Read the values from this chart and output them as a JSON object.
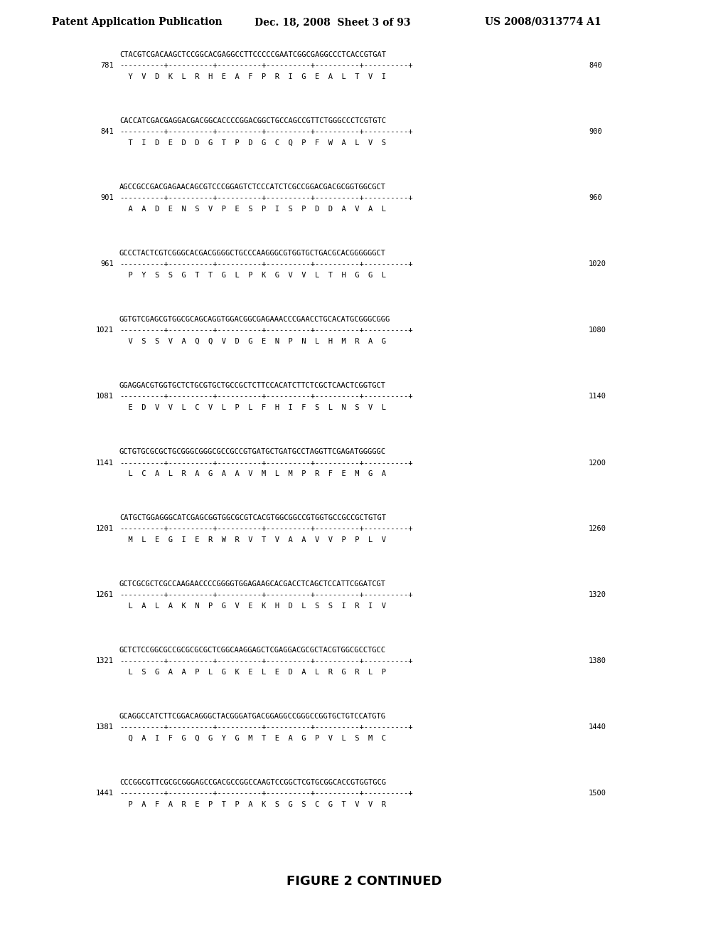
{
  "header_left": "Patent Application Publication",
  "header_mid": "Dec. 18, 2008  Sheet 3 of 93",
  "header_right": "US 2008/0313774 A1",
  "footer": "FIGURE 2 CONTINUED",
  "background_color": "#ffffff",
  "sequences": [
    {
      "num_left": "781",
      "num_right": "840",
      "dna": "CTACGTCGACAAGCTCCGGCACGAGGCCTTCCCCCGAATCGGCGAGGCCCTCACCGTGAT",
      "ruler": "----------+----------+----------+----------+----------+----------+",
      "protein": "  Y  V  D  K  L  R  H  E  A  F  P  R  I  G  E  A  L  T  V  I"
    },
    {
      "num_left": "841",
      "num_right": "900",
      "dna": "CACCATCGACGAGGACGACGGCACCCCGGACGGCTGCCAGCCGTTCTGGGCCCTCGTGTC",
      "ruler": "----------+----------+----------+----------+----------+----------+",
      "protein": "  T  I  D  E  D  D  G  T  P  D  G  C  Q  P  F  W  A  L  V  S"
    },
    {
      "num_left": "901",
      "num_right": "960",
      "dna": "AGCCGCCGACGAGAACAGCGTCCCGGAGTCTCCCATCTCGCCGGACGACGCGGTGGCGCT",
      "ruler": "----------+----------+----------+----------+----------+----------+",
      "protein": "  A  A  D  E  N  S  V  P  E  S  P  I  S  P  D  D  A  V  A  L"
    },
    {
      "num_left": "961",
      "num_right": "1020",
      "dna": "GCCCTACTCGTCGGGCACGACGGGGCTGCCCAAGGGCGTGGTGCTGACGCACGGGGGGCT",
      "ruler": "----------+----------+----------+----------+----------+----------+",
      "protein": "  P  Y  S  S  G  T  T  G  L  P  K  G  V  V  L  T  H  G  G  L"
    },
    {
      "num_left": "1021",
      "num_right": "1080",
      "dna": "GGTGTCGAGCGTGGCGCAGCAGGTGGACGGCGAGAAACCCGAACCTGCACATGCGGGCGGG",
      "ruler": "----------+----------+----------+----------+----------+----------+",
      "protein": "  V  S  S  V  A  Q  Q  V  D  G  E  N  P  N  L  H  M  R  A  G"
    },
    {
      "num_left": "1081",
      "num_right": "1140",
      "dna": "GGAGGACGTGGTGCTCTGCGTGCTGCCGCTCTTCCACATCTTCTCGCTCAACTCGGTGCT",
      "ruler": "----------+----------+----------+----------+----------+----------+",
      "protein": "  E  D  V  V  L  C  V  L  P  L  F  H  I  F  S  L  N  S  V  L"
    },
    {
      "num_left": "1141",
      "num_right": "1200",
      "dna": "GCTGTGCGCGCTGCGGGCGGGCGCCGCCGTGATGCTGATGCCTAGGTTCGAGATGGGGGC",
      "ruler": "----------+----------+----------+----------+----------+----------+",
      "protein": "  L  C  A  L  R  A  G  A  A  V  M  L  M  P  R  F  E  M  G  A"
    },
    {
      "num_left": "1201",
      "num_right": "1260",
      "dna": "CATGCTGGAGGGCATCGAGCGGTGGCGCGTCACGTGGCGGCCGTGGTGCCGCCGCTGTGT",
      "ruler": "----------+----------+----------+----------+----------+----------+",
      "protein": "  M  L  E  G  I  E  R  W  R  V  T  V  A  A  V  V  P  P  L  V"
    },
    {
      "num_left": "1261",
      "num_right": "1320",
      "dna": "GCTCGCGCTCGCCAAGAACCCCGGGGTGGAGAAGCACGACCTCAGCTCCATTCGGATCGT",
      "ruler": "----------+----------+----------+----------+----------+----------+",
      "protein": "  L  A  L  A  K  N  P  G  V  E  K  H  D  L  S  S  I  R  I  V"
    },
    {
      "num_left": "1321",
      "num_right": "1380",
      "dna": "GCTCTCCGGCGCCGCGCGCGCTCGGCAAGGAGCTCGAGGACGCGCTACGTGGCGCCTGCC",
      "ruler": "----------+----------+----------+----------+----------+----------+",
      "protein": "  L  S  G  A  A  P  L  G  K  E  L  E  D  A  L  R  G  R  L  P"
    },
    {
      "num_left": "1381",
      "num_right": "1440",
      "dna": "GCAGGCCATCTTCGGACAGGGCTACGGGATGACGGAGGCCGGGCCGGTGCTGTCCATGTG",
      "ruler": "----------+----------+----------+----------+----------+----------+",
      "protein": "  Q  A  I  F  G  Q  G  Y  G  M  T  E  A  G  P  V  L  S  M  C"
    },
    {
      "num_left": "1441",
      "num_right": "1500",
      "dna": "CCCGGCGTTCGCGCGGGAGCCGACGCCGGCCAAGTCCGGCTCGTGCGGCACCGTGGTGCG",
      "ruler": "----------+----------+----------+----------+----------+----------+",
      "protein": "  P  A  F  A  R  E  P  T  P  A  K  S  G  S  C  G  T  V  V  R"
    }
  ]
}
